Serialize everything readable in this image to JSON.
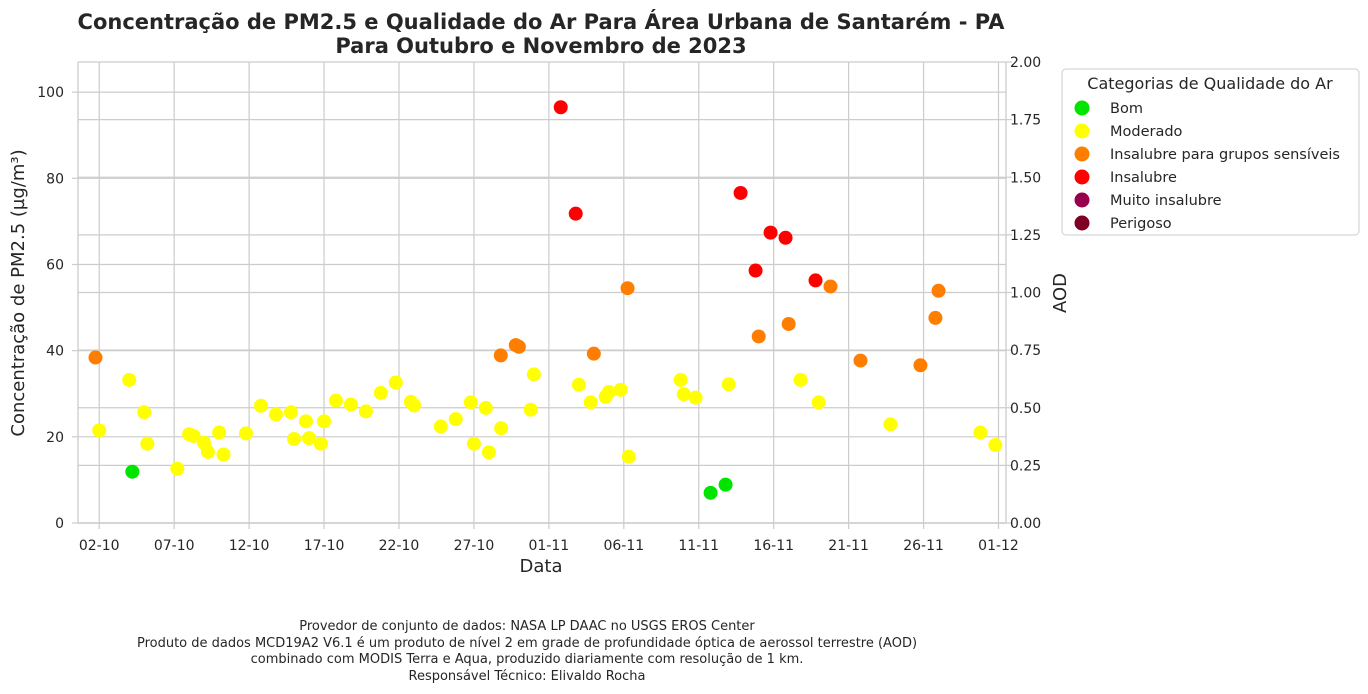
{
  "chart_data": {
    "type": "scatter",
    "title_lines": [
      "Concentração de PM2.5 e Qualidade do Ar Para Área Urbana de Santarém - PA",
      "Para Outubro e Novembro de 2023"
    ],
    "xlabel": "Data",
    "ylabel": "Concentração de PM2.5 (µg/m³)",
    "y2label": "AOD",
    "x_range": [
      "2023-09-30T14:00",
      "2023-12-01T12:00"
    ],
    "ylim": [
      0,
      107
    ],
    "y2lim": [
      0,
      2.0
    ],
    "x_ticks": [
      {
        "date": "2023-10-02",
        "label": "02-10"
      },
      {
        "date": "2023-10-07",
        "label": "07-10"
      },
      {
        "date": "2023-10-12",
        "label": "12-10"
      },
      {
        "date": "2023-10-17",
        "label": "17-10"
      },
      {
        "date": "2023-10-22",
        "label": "22-10"
      },
      {
        "date": "2023-10-27",
        "label": "27-10"
      },
      {
        "date": "2023-11-01",
        "label": "01-11"
      },
      {
        "date": "2023-11-06",
        "label": "06-11"
      },
      {
        "date": "2023-11-11",
        "label": "11-11"
      },
      {
        "date": "2023-11-16",
        "label": "16-11"
      },
      {
        "date": "2023-11-21",
        "label": "21-11"
      },
      {
        "date": "2023-11-26",
        "label": "26-11"
      },
      {
        "date": "2023-12-01",
        "label": "01-12"
      }
    ],
    "y_ticks": [
      {
        "value": 0,
        "label": "0"
      },
      {
        "value": 20,
        "label": "20"
      },
      {
        "value": 40,
        "label": "40"
      },
      {
        "value": 60,
        "label": "60"
      },
      {
        "value": 80,
        "label": "80"
      },
      {
        "value": 100,
        "label": "100"
      }
    ],
    "y2_ticks": [
      {
        "value": 0.0,
        "label": "0.00"
      },
      {
        "value": 0.25,
        "label": "0.25"
      },
      {
        "value": 0.5,
        "label": "0.50"
      },
      {
        "value": 0.75,
        "label": "0.75"
      },
      {
        "value": 1.0,
        "label": "1.00"
      },
      {
        "value": 1.25,
        "label": "1.25"
      },
      {
        "value": 1.5,
        "label": "1.50"
      },
      {
        "value": 1.75,
        "label": "1.75"
      },
      {
        "value": 2.0,
        "label": "2.00"
      }
    ],
    "grid": true,
    "legend_placement": "outside-right",
    "legend": {
      "title": "Categorias de Qualidade do Ar",
      "items": [
        {
          "label": "Bom",
          "color": "#00e400"
        },
        {
          "label": "Moderado",
          "color": "#ffff00"
        },
        {
          "label": "Insalubre para grupos sensíveis",
          "color": "#ff7e00"
        },
        {
          "label": "Insalubre",
          "color": "#ff0000"
        },
        {
          "label": "Muito insalubre",
          "color": "#99004c"
        },
        {
          "label": "Perigoso",
          "color": "#7e0023"
        }
      ]
    },
    "points": [
      {
        "x": "2023-10-01T18:00",
        "y": 38.4,
        "cat": 2
      },
      {
        "x": "2023-10-02T00:00",
        "y": 21.5,
        "cat": 1
      },
      {
        "x": "2023-10-04T00:00",
        "y": 33.2,
        "cat": 1
      },
      {
        "x": "2023-10-04T05:00",
        "y": 11.9,
        "cat": 0
      },
      {
        "x": "2023-10-05T00:00",
        "y": 25.7,
        "cat": 1
      },
      {
        "x": "2023-10-05T05:00",
        "y": 18.4,
        "cat": 1
      },
      {
        "x": "2023-10-07T05:00",
        "y": 12.6,
        "cat": 1
      },
      {
        "x": "2023-10-08T00:00",
        "y": 20.6,
        "cat": 1
      },
      {
        "x": "2023-10-08T07:00",
        "y": 20.2,
        "cat": 1
      },
      {
        "x": "2023-10-09T00:00",
        "y": 18.6,
        "cat": 1
      },
      {
        "x": "2023-10-09T06:00",
        "y": 16.5,
        "cat": 1
      },
      {
        "x": "2023-10-10T00:00",
        "y": 21.0,
        "cat": 1
      },
      {
        "x": "2023-10-10T07:00",
        "y": 15.9,
        "cat": 1
      },
      {
        "x": "2023-10-11T19:00",
        "y": 20.8,
        "cat": 1
      },
      {
        "x": "2023-10-12T19:00",
        "y": 27.2,
        "cat": 1
      },
      {
        "x": "2023-10-13T19:00",
        "y": 25.2,
        "cat": 1
      },
      {
        "x": "2023-10-14T19:00",
        "y": 25.7,
        "cat": 1
      },
      {
        "x": "2023-10-15T00:00",
        "y": 19.5,
        "cat": 1
      },
      {
        "x": "2023-10-15T19:00",
        "y": 23.6,
        "cat": 1
      },
      {
        "x": "2023-10-16T00:00",
        "y": 19.7,
        "cat": 1
      },
      {
        "x": "2023-10-16T19:00",
        "y": 18.4,
        "cat": 1
      },
      {
        "x": "2023-10-17T00:00",
        "y": 23.6,
        "cat": 1
      },
      {
        "x": "2023-10-17T19:00",
        "y": 28.4,
        "cat": 1
      },
      {
        "x": "2023-10-18T19:00",
        "y": 27.5,
        "cat": 1
      },
      {
        "x": "2023-10-19T19:00",
        "y": 25.9,
        "cat": 1
      },
      {
        "x": "2023-10-20T19:00",
        "y": 30.2,
        "cat": 1
      },
      {
        "x": "2023-10-21T19:00",
        "y": 32.6,
        "cat": 1
      },
      {
        "x": "2023-10-22T19:00",
        "y": 28.1,
        "cat": 1
      },
      {
        "x": "2023-10-23T00:00",
        "y": 27.3,
        "cat": 1
      },
      {
        "x": "2023-10-24T19:00",
        "y": 22.4,
        "cat": 1
      },
      {
        "x": "2023-10-25T19:00",
        "y": 24.1,
        "cat": 1
      },
      {
        "x": "2023-10-26T19:00",
        "y": 28.0,
        "cat": 1
      },
      {
        "x": "2023-10-27T00:00",
        "y": 18.4,
        "cat": 1
      },
      {
        "x": "2023-10-27T19:00",
        "y": 26.7,
        "cat": 1
      },
      {
        "x": "2023-10-28T00:00",
        "y": 16.4,
        "cat": 1
      },
      {
        "x": "2023-10-28T19:00",
        "y": 38.9,
        "cat": 2
      },
      {
        "x": "2023-10-28T19:30",
        "y": 22.0,
        "cat": 1
      },
      {
        "x": "2023-10-29T19:00",
        "y": 41.3,
        "cat": 2
      },
      {
        "x": "2023-10-30T00:00",
        "y": 40.9,
        "cat": 2
      },
      {
        "x": "2023-10-30T19:00",
        "y": 26.3,
        "cat": 1
      },
      {
        "x": "2023-10-31T00:00",
        "y": 34.5,
        "cat": 1
      },
      {
        "x": "2023-11-01T19:00",
        "y": 96.5,
        "cat": 3
      },
      {
        "x": "2023-11-02T19:00",
        "y": 71.8,
        "cat": 3
      },
      {
        "x": "2023-11-03T00:00",
        "y": 32.1,
        "cat": 1
      },
      {
        "x": "2023-11-03T19:00",
        "y": 28.0,
        "cat": 1
      },
      {
        "x": "2023-11-04T00:00",
        "y": 39.3,
        "cat": 2
      },
      {
        "x": "2023-11-04T19:00",
        "y": 29.3,
        "cat": 1
      },
      {
        "x": "2023-11-05T00:00",
        "y": 30.4,
        "cat": 1
      },
      {
        "x": "2023-11-05T19:00",
        "y": 30.9,
        "cat": 1
      },
      {
        "x": "2023-11-06T06:00",
        "y": 54.5,
        "cat": 2
      },
      {
        "x": "2023-11-06T08:00",
        "y": 15.4,
        "cat": 1
      },
      {
        "x": "2023-11-09T19:00",
        "y": 33.2,
        "cat": 1
      },
      {
        "x": "2023-11-10T00:00",
        "y": 29.9,
        "cat": 1
      },
      {
        "x": "2023-11-10T19:00",
        "y": 29.1,
        "cat": 1
      },
      {
        "x": "2023-11-11T19:00",
        "y": 7.0,
        "cat": 0
      },
      {
        "x": "2023-11-12T19:00",
        "y": 8.9,
        "cat": 0
      },
      {
        "x": "2023-11-13T00:00",
        "y": 32.2,
        "cat": 1
      },
      {
        "x": "2023-11-13T19:00",
        "y": 76.6,
        "cat": 3
      },
      {
        "x": "2023-11-14T19:00",
        "y": 58.6,
        "cat": 3
      },
      {
        "x": "2023-11-15T00:00",
        "y": 43.3,
        "cat": 2
      },
      {
        "x": "2023-11-15T19:00",
        "y": 67.4,
        "cat": 3
      },
      {
        "x": "2023-11-16T19:00",
        "y": 66.2,
        "cat": 3
      },
      {
        "x": "2023-11-17T00:00",
        "y": 46.2,
        "cat": 2
      },
      {
        "x": "2023-11-17T19:00",
        "y": 33.2,
        "cat": 1
      },
      {
        "x": "2023-11-18T19:00",
        "y": 56.3,
        "cat": 3
      },
      {
        "x": "2023-11-19T00:00",
        "y": 28.0,
        "cat": 1
      },
      {
        "x": "2023-11-19T19:00",
        "y": 54.9,
        "cat": 2
      },
      {
        "x": "2023-11-21T19:00",
        "y": 37.7,
        "cat": 2
      },
      {
        "x": "2023-11-23T19:00",
        "y": 22.9,
        "cat": 1
      },
      {
        "x": "2023-11-25T19:00",
        "y": 36.6,
        "cat": 2
      },
      {
        "x": "2023-11-26T19:00",
        "y": 47.6,
        "cat": 2
      },
      {
        "x": "2023-11-27T00:00",
        "y": 53.9,
        "cat": 2
      },
      {
        "x": "2023-11-29T19:00",
        "y": 21.0,
        "cat": 1
      },
      {
        "x": "2023-11-30T19:00",
        "y": 18.1,
        "cat": 1
      }
    ]
  },
  "footer": {
    "lines": [
      "Provedor de conjunto de dados: NASA LP DAAC no USGS EROS Center",
      "Produto de dados MCD19A2 V6.1 é um produto de nível 2 em grade de profundidade óptica de aerossol terrestre (AOD)",
      "combinado com MODIS Terra e Aqua, produzido diariamente com resolução de 1 km.",
      "Responsável Técnico: Elivaldo Rocha"
    ]
  }
}
